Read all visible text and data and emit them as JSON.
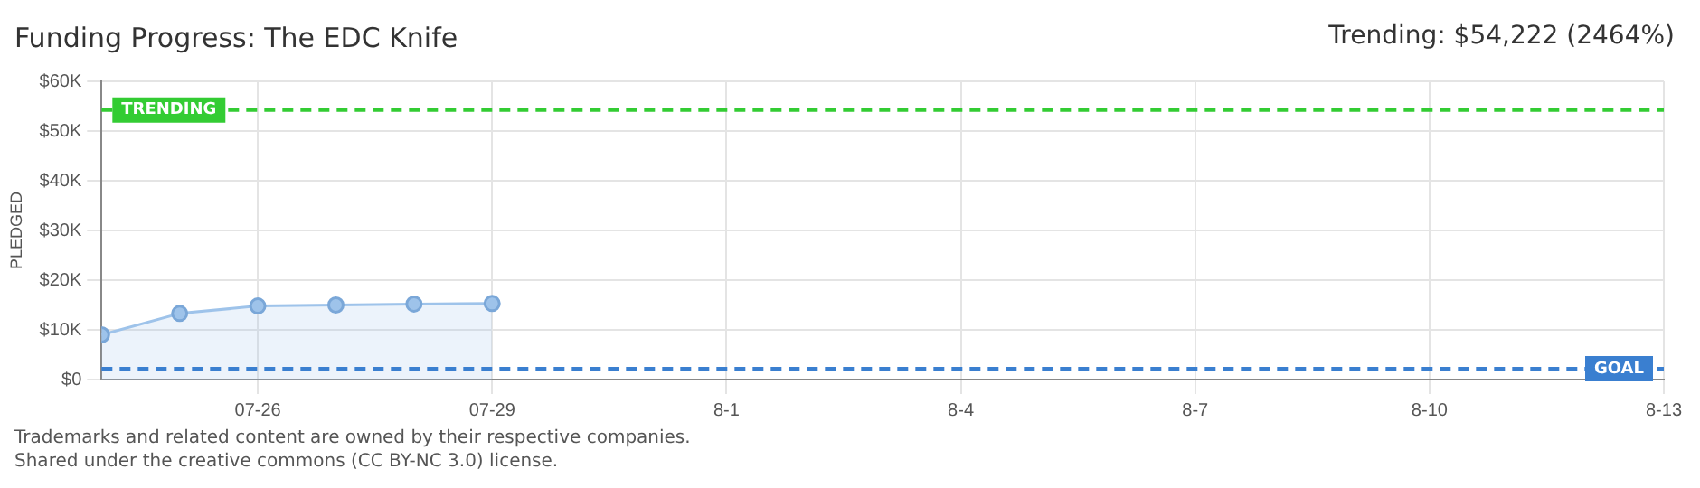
{
  "chart_data": {
    "type": "area",
    "title": "Funding Progress: The EDC Knife",
    "ylabel": "PLEDGED",
    "x": [
      "--07-24",
      "--07-25",
      "--07-26",
      "--07-27",
      "--07-28",
      "--07-29"
    ],
    "series": [
      {
        "color": "#9ec3ea",
        "values": [
          9000,
          13300,
          14800,
          15000,
          15200,
          15300
        ]
      }
    ],
    "xlim": [
      "--07-24",
      "--08-13"
    ],
    "xticks": [
      {
        "value": "--07-26",
        "label": "07-26"
      },
      {
        "value": "--07-29",
        "label": "07-29"
      },
      {
        "value": "--08-01",
        "label": "8-1"
      },
      {
        "value": "--08-04",
        "label": "8-4"
      },
      {
        "value": "--08-07",
        "label": "8-7"
      },
      {
        "value": "--08-10",
        "label": "8-10"
      },
      {
        "value": "--08-13",
        "label": "8-13"
      }
    ],
    "ylim": [
      0,
      60000
    ],
    "yticks": [
      {
        "value": 0,
        "label": "$0"
      },
      {
        "value": 10000,
        "label": "$10K"
      },
      {
        "value": 20000,
        "label": "$20K"
      },
      {
        "value": 30000,
        "label": "$30K"
      },
      {
        "value": 40000,
        "label": "$40K"
      },
      {
        "value": 50000,
        "label": "$50K"
      },
      {
        "value": 60000,
        "label": "$60K"
      }
    ],
    "ref_lines": [
      {
        "axis": "y",
        "value": 54222,
        "label": "TRENDING",
        "color": "#33cc33",
        "line_style": "dashed"
      },
      {
        "axis": "y",
        "value": 2200,
        "label": "GOAL",
        "color": "#3a7fd0",
        "line_style": "dashed"
      }
    ],
    "annotations": [
      "Trending: $54,222 (2464%)",
      "Trademarks and related content are owned by their respective companies.",
      "Shared under the creative commons (CC BY-NC 3.0) license."
    ],
    "grid": true,
    "marker": "circle",
    "legend": false
  }
}
